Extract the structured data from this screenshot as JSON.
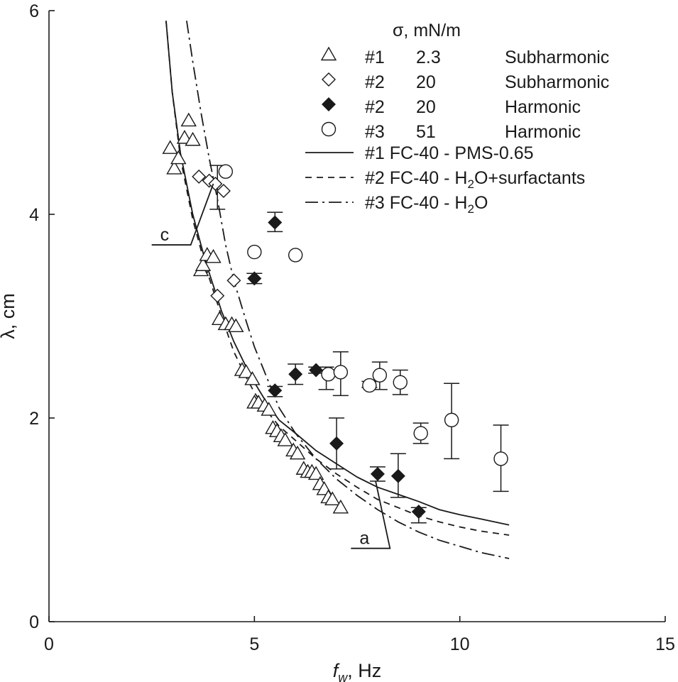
{
  "chart_data": {
    "type": "scatter",
    "xlabel": "f",
    "xlabel_sub": "w",
    "xlabel_unit": ", Hz",
    "ylabel": "λ, cm",
    "xlim": [
      0,
      15
    ],
    "ylim": [
      0,
      6
    ],
    "x_ticks": [
      0,
      5,
      10,
      15
    ],
    "x_tick_labels": [
      "0",
      "5",
      "10",
      "15"
    ],
    "y_ticks": [
      0,
      2,
      4,
      6
    ],
    "y_tick_labels": [
      "0",
      "2",
      "4",
      "6"
    ],
    "grid": false,
    "legend": {
      "position": "top-right",
      "header": "σ, mN/m",
      "marker_entries": [
        {
          "marker": "triangle-open",
          "id": "#1",
          "sigma": "2.3",
          "mode": "Subharmonic"
        },
        {
          "marker": "diamond-open",
          "id": "#2",
          "sigma": "20",
          "mode": "Subharmonic"
        },
        {
          "marker": "diamond-filled",
          "id": "#2",
          "sigma": "20",
          "mode": "Harmonic"
        },
        {
          "marker": "circle-open",
          "id": "#3",
          "sigma": "51",
          "mode": "Harmonic"
        }
      ],
      "line_entries": [
        {
          "style": "solid",
          "label": "#1 FC-40 - PMS-0.65"
        },
        {
          "style": "dashed",
          "label_pre": "#2 FC-40 - H",
          "label_sub": "2",
          "label_post": "O+surfactants"
        },
        {
          "style": "dashdot",
          "label_pre": "#3 FC-40 - H",
          "label_sub": "2",
          "label_post": "O"
        }
      ]
    },
    "annotations": [
      {
        "text": "c",
        "label_at": [
          2.5,
          3.7
        ],
        "line_to": [
          4.0,
          4.3
        ]
      },
      {
        "text": "a",
        "label_at": [
          7.35,
          0.72
        ],
        "line_to": [
          7.95,
          1.38
        ]
      }
    ],
    "series": [
      {
        "name": "#1 σ=2.3 Subharmonic",
        "marker": "triangle-open",
        "points": [
          [
            2.95,
            4.65
          ],
          [
            3.05,
            4.45
          ],
          [
            3.15,
            4.55
          ],
          [
            3.3,
            4.75
          ],
          [
            3.4,
            4.92
          ],
          [
            3.5,
            4.73
          ],
          [
            3.7,
            3.45
          ],
          [
            3.75,
            3.5
          ],
          [
            3.85,
            3.6
          ],
          [
            4.0,
            3.58
          ],
          [
            4.15,
            2.97
          ],
          [
            4.3,
            2.92
          ],
          [
            4.45,
            2.92
          ],
          [
            4.55,
            2.9
          ],
          [
            4.7,
            2.47
          ],
          [
            4.8,
            2.45
          ],
          [
            4.95,
            2.38
          ],
          [
            5.0,
            2.15
          ],
          [
            5.1,
            2.15
          ],
          [
            5.25,
            2.12
          ],
          [
            5.35,
            2.08
          ],
          [
            5.45,
            1.9
          ],
          [
            5.55,
            1.87
          ],
          [
            5.65,
            1.82
          ],
          [
            5.75,
            1.78
          ],
          [
            5.95,
            1.68
          ],
          [
            6.05,
            1.65
          ],
          [
            6.2,
            1.5
          ],
          [
            6.3,
            1.47
          ],
          [
            6.4,
            1.47
          ],
          [
            6.5,
            1.45
          ],
          [
            6.6,
            1.35
          ],
          [
            6.7,
            1.3
          ],
          [
            6.8,
            1.22
          ],
          [
            6.9,
            1.2
          ],
          [
            7.1,
            1.12
          ]
        ]
      },
      {
        "name": "#2 σ=20 Subharmonic",
        "marker": "diamond-open",
        "points": [
          [
            3.65,
            4.37
          ],
          [
            3.9,
            4.33
          ],
          [
            4.05,
            4.3
          ],
          [
            4.25,
            4.23
          ],
          [
            4.1,
            3.2
          ],
          [
            4.5,
            3.35
          ]
        ]
      },
      {
        "name": "#2 σ=20 Harmonic",
        "marker": "diamond-filled",
        "points": [
          [
            5.0,
            3.37
          ],
          [
            5.5,
            3.92
          ],
          [
            5.5,
            2.27
          ],
          [
            6.0,
            2.43
          ],
          [
            6.5,
            2.47
          ],
          [
            7.0,
            1.75
          ],
          [
            8.0,
            1.45
          ],
          [
            8.5,
            1.43
          ],
          [
            9.0,
            1.08
          ]
        ]
      },
      {
        "name": "#3 σ=51 Harmonic",
        "marker": "circle-open",
        "points": [
          [
            4.3,
            4.42
          ],
          [
            5.0,
            3.63
          ],
          [
            6.0,
            3.6
          ],
          [
            6.8,
            2.43
          ],
          [
            7.1,
            2.45
          ],
          [
            7.8,
            2.32
          ],
          [
            8.05,
            2.42
          ],
          [
            8.55,
            2.35
          ],
          [
            9.05,
            1.85
          ],
          [
            9.8,
            1.98
          ],
          [
            11.0,
            1.6
          ]
        ]
      }
    ],
    "error_bars": [
      {
        "x": 4.1,
        "low": 4.05,
        "high": 4.48
      },
      {
        "x": 5.5,
        "low": 3.83,
        "high": 4.02
      },
      {
        "x": 5.0,
        "low": 3.32,
        "high": 3.42
      },
      {
        "x": 5.5,
        "low": 2.21,
        "high": 2.31
      },
      {
        "x": 6.0,
        "low": 2.33,
        "high": 2.53
      },
      {
        "x": 6.5,
        "low": 2.44,
        "high": 2.5
      },
      {
        "x": 6.75,
        "low": 2.28,
        "high": 2.5
      },
      {
        "x": 7.1,
        "low": 2.22,
        "high": 2.65
      },
      {
        "x": 7.8,
        "low": 2.3,
        "high": 2.36
      },
      {
        "x": 8.05,
        "low": 2.28,
        "high": 2.55
      },
      {
        "x": 8.55,
        "low": 2.23,
        "high": 2.47
      },
      {
        "x": 9.05,
        "low": 1.75,
        "high": 1.95
      },
      {
        "x": 9.8,
        "low": 1.6,
        "high": 2.34
      },
      {
        "x": 11.0,
        "low": 1.28,
        "high": 1.93
      },
      {
        "x": 7.0,
        "low": 1.5,
        "high": 2.0
      },
      {
        "x": 8.0,
        "low": 1.38,
        "high": 1.52
      },
      {
        "x": 8.5,
        "low": 1.22,
        "high": 1.65
      },
      {
        "x": 9.0,
        "low": 0.97,
        "high": 1.12
      }
    ],
    "curves": [
      {
        "name": "#1 FC-40 - PMS-0.65",
        "style": "solid",
        "points": [
          [
            2.85,
            5.9
          ],
          [
            3.0,
            5.2
          ],
          [
            3.2,
            4.6
          ],
          [
            3.5,
            4.0
          ],
          [
            3.8,
            3.55
          ],
          [
            4.0,
            3.3
          ],
          [
            4.2,
            3.05
          ],
          [
            4.5,
            2.75
          ],
          [
            4.8,
            2.5
          ],
          [
            5.0,
            2.35
          ],
          [
            5.3,
            2.15
          ],
          [
            5.6,
            1.98
          ],
          [
            6.0,
            1.85
          ],
          [
            6.5,
            1.68
          ],
          [
            7.0,
            1.55
          ],
          [
            7.5,
            1.42
          ],
          [
            8.0,
            1.32
          ],
          [
            8.5,
            1.25
          ],
          [
            9.0,
            1.18
          ],
          [
            9.5,
            1.1
          ],
          [
            10.0,
            1.05
          ],
          [
            10.5,
            1.01
          ],
          [
            11.2,
            0.95
          ]
        ]
      },
      {
        "name": "#2 FC-40 - H2O+surfactants",
        "style": "dashed",
        "points": [
          [
            2.85,
            5.9
          ],
          [
            3.0,
            5.2
          ],
          [
            3.2,
            4.55
          ],
          [
            3.5,
            3.95
          ],
          [
            3.8,
            3.5
          ],
          [
            4.0,
            3.25
          ],
          [
            4.2,
            3.0
          ],
          [
            4.5,
            2.65
          ],
          [
            4.8,
            2.4
          ],
          [
            5.0,
            2.25
          ],
          [
            5.3,
            2.07
          ],
          [
            5.6,
            1.92
          ],
          [
            6.0,
            1.78
          ],
          [
            6.5,
            1.6
          ],
          [
            7.0,
            1.45
          ],
          [
            7.5,
            1.32
          ],
          [
            8.0,
            1.2
          ],
          [
            8.5,
            1.12
          ],
          [
            9.0,
            1.04
          ],
          [
            9.5,
            0.98
          ],
          [
            10.0,
            0.93
          ],
          [
            10.5,
            0.89
          ],
          [
            11.2,
            0.85
          ]
        ]
      },
      {
        "name": "#3 FC-40 - H2O",
        "style": "dashdot",
        "points": [
          [
            3.35,
            5.9
          ],
          [
            3.5,
            5.5
          ],
          [
            3.7,
            5.0
          ],
          [
            3.9,
            4.55
          ],
          [
            4.1,
            4.15
          ],
          [
            4.3,
            3.7
          ],
          [
            4.5,
            3.35
          ],
          [
            4.8,
            2.95
          ],
          [
            5.0,
            2.7
          ],
          [
            5.3,
            2.4
          ],
          [
            5.6,
            2.1
          ],
          [
            6.0,
            1.85
          ],
          [
            6.5,
            1.6
          ],
          [
            7.0,
            1.4
          ],
          [
            7.5,
            1.24
          ],
          [
            8.0,
            1.1
          ],
          [
            8.5,
            0.98
          ],
          [
            9.0,
            0.88
          ],
          [
            9.5,
            0.8
          ],
          [
            10.0,
            0.74
          ],
          [
            10.5,
            0.68
          ],
          [
            11.2,
            0.62
          ]
        ]
      }
    ]
  }
}
